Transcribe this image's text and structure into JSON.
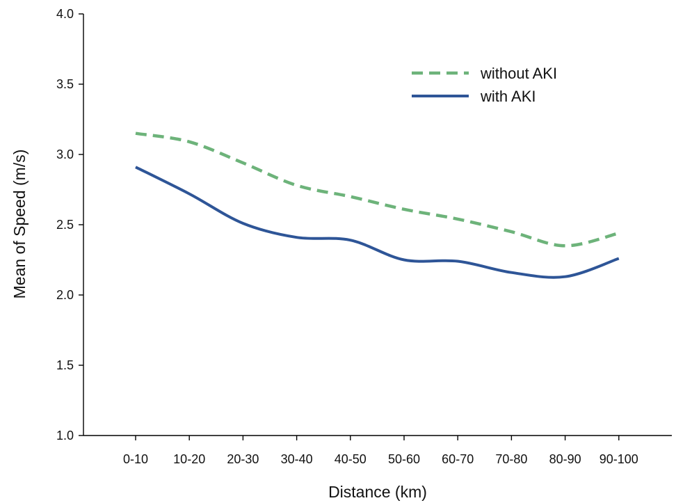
{
  "chart_data": {
    "type": "line",
    "title": "",
    "xlabel": "Distance (km)",
    "ylabel": "Mean of Speed (m/s)",
    "categories": [
      "0-10",
      "10-20",
      "20-30",
      "30-40",
      "40-50",
      "50-60",
      "60-70",
      "70-80",
      "80-90",
      "90-100"
    ],
    "ylim": [
      1.0,
      4.0
    ],
    "yticks": [
      "1.0",
      "1.5",
      "2.0",
      "2.5",
      "3.0",
      "3.5",
      "4.0"
    ],
    "grid": false,
    "legend_position": "top-right",
    "series": [
      {
        "name": "without AKI",
        "style": "dashed",
        "color": "#6db37a",
        "values": [
          3.15,
          3.09,
          2.94,
          2.78,
          2.7,
          2.61,
          2.54,
          2.45,
          2.35,
          2.44
        ]
      },
      {
        "name": "with AKI",
        "style": "solid",
        "color": "#2e5597",
        "values": [
          2.91,
          2.72,
          2.51,
          2.41,
          2.39,
          2.25,
          2.24,
          2.16,
          2.13,
          2.26
        ]
      }
    ]
  }
}
